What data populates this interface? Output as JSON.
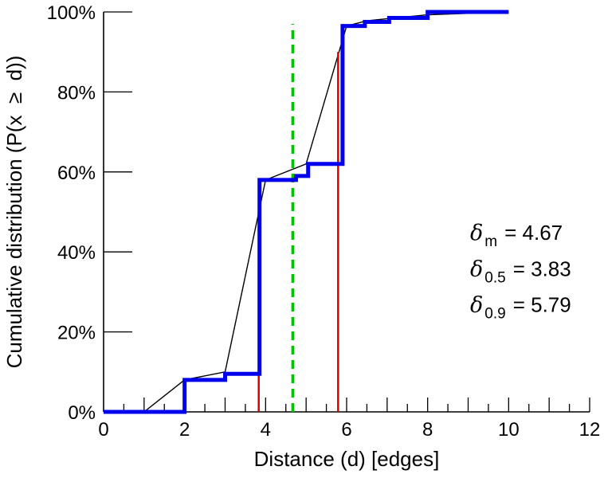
{
  "chart_data": {
    "type": "line",
    "title": "",
    "xlabel": "Distance (d) [edges]",
    "ylabel": "Cumulative distribution (P(x  ≥  d))",
    "xlim": [
      0,
      12
    ],
    "ylim": [
      0,
      100
    ],
    "grid": "off",
    "legend": "none",
    "x_major_tick_values": [
      0,
      2,
      4,
      6,
      8,
      10,
      12
    ],
    "x_major_ticks": [
      "0",
      "2",
      "4",
      "6",
      "8",
      "10",
      "12"
    ],
    "x_minor_step": 0.5,
    "y_ticks": [
      0,
      20,
      40,
      60,
      80,
      100
    ],
    "y_tick_labels": [
      "0%",
      "20%",
      "40%",
      "60%",
      "80%",
      "100%"
    ],
    "series": [
      {
        "name": "interpolated-cdf-line",
        "style": "linear",
        "color": "#000000",
        "width": 1.4,
        "points": [
          [
            1,
            0
          ],
          [
            2,
            8
          ],
          [
            3,
            10
          ],
          [
            4,
            58
          ],
          [
            5,
            62
          ],
          [
            6,
            96.5
          ],
          [
            6.5,
            97.8
          ],
          [
            8,
            99.3
          ],
          [
            10,
            100
          ]
        ]
      },
      {
        "name": "empirical-cdf-steps",
        "style": "step-after",
        "color": "#0000ee",
        "width": 5,
        "points": [
          [
            0,
            0
          ],
          [
            2,
            8
          ],
          [
            3,
            9.5
          ],
          [
            3.85,
            58
          ],
          [
            4.75,
            59
          ],
          [
            5.05,
            62
          ],
          [
            5.9,
            96.5
          ],
          [
            6.45,
            97.5
          ],
          [
            7.05,
            98.5
          ],
          [
            8,
            100
          ],
          [
            10,
            100
          ]
        ]
      }
    ],
    "vlines": [
      {
        "name": "median-marker-line",
        "x": 3.83,
        "y_from": 0,
        "y_to": 50,
        "color": "#dd0000",
        "width": 2.5,
        "dash": ""
      },
      {
        "name": "p90-marker-line",
        "x": 5.79,
        "y_from": 0,
        "y_to": 90,
        "color": "#dd0000",
        "width": 2.5,
        "dash": ""
      },
      {
        "name": "mean-marker-line",
        "x": 4.67,
        "y_from": 0,
        "y_to": 97,
        "color": "#00c400",
        "width": 3.5,
        "dash": "11 7"
      }
    ],
    "annotations": [
      {
        "symbol": "δ",
        "sub": "m",
        "value": "=  4.67",
        "x": 9.05,
        "y": 43
      },
      {
        "symbol": "δ",
        "sub": "0.5",
        "value": "=  3.83",
        "x": 9.05,
        "y": 34
      },
      {
        "symbol": "δ",
        "sub": "0.9",
        "value": "=  5.79",
        "x": 9.05,
        "y": 25
      }
    ],
    "colors": {
      "step_series": "#0000ee",
      "interpolation": "#000000",
      "percentile_markers": "#dd0000",
      "mean_marker": "#00c400",
      "axes": "#000000"
    }
  }
}
